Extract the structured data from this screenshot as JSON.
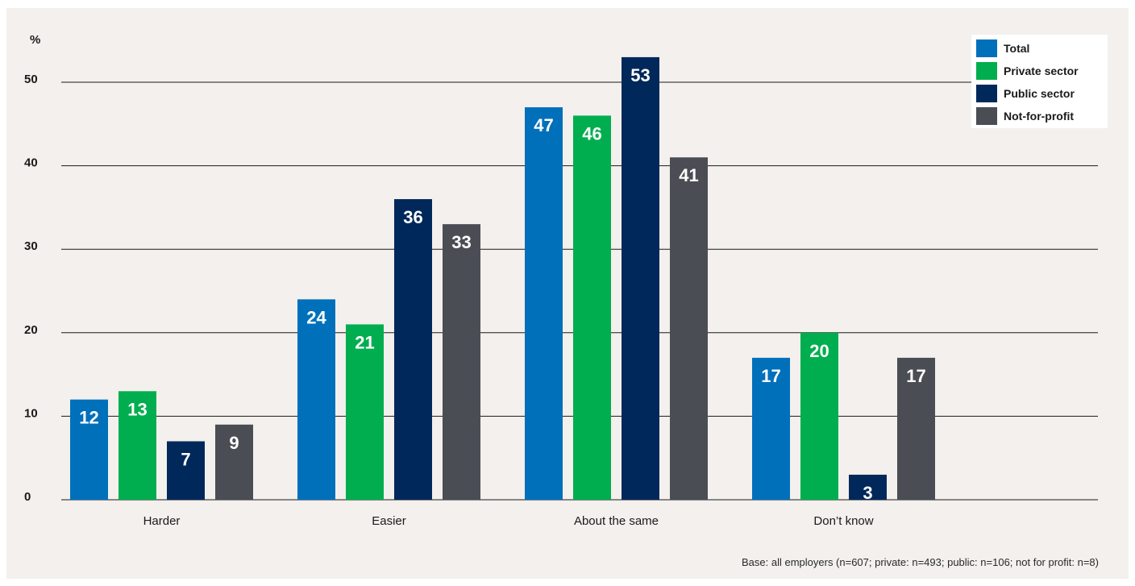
{
  "chart_data": {
    "type": "bar",
    "ylabel": "%",
    "ylim": [
      0,
      50
    ],
    "yticks": [
      "0",
      "10",
      "20",
      "30",
      "40",
      "50"
    ],
    "categories": [
      "Harder",
      "Easier",
      "About the same",
      "Don’t know"
    ],
    "series": [
      {
        "name": "Total",
        "color": "#0070bb",
        "values": [
          12,
          24,
          47,
          17
        ]
      },
      {
        "name": "Private sector",
        "color": "#00ae4f",
        "values": [
          13,
          21,
          46,
          20
        ]
      },
      {
        "name": "Public sector",
        "color": "#01285a",
        "values": [
          7,
          36,
          53,
          3
        ]
      },
      {
        "name": "Not-for-profit",
        "color": "#4a4d54",
        "values": [
          9,
          33,
          41,
          17
        ]
      }
    ],
    "legend_position": "top-right",
    "grid": true
  },
  "footnote": "Base: all employers (n=607; private: n=493; public: n=106; not for profit: n=8)"
}
